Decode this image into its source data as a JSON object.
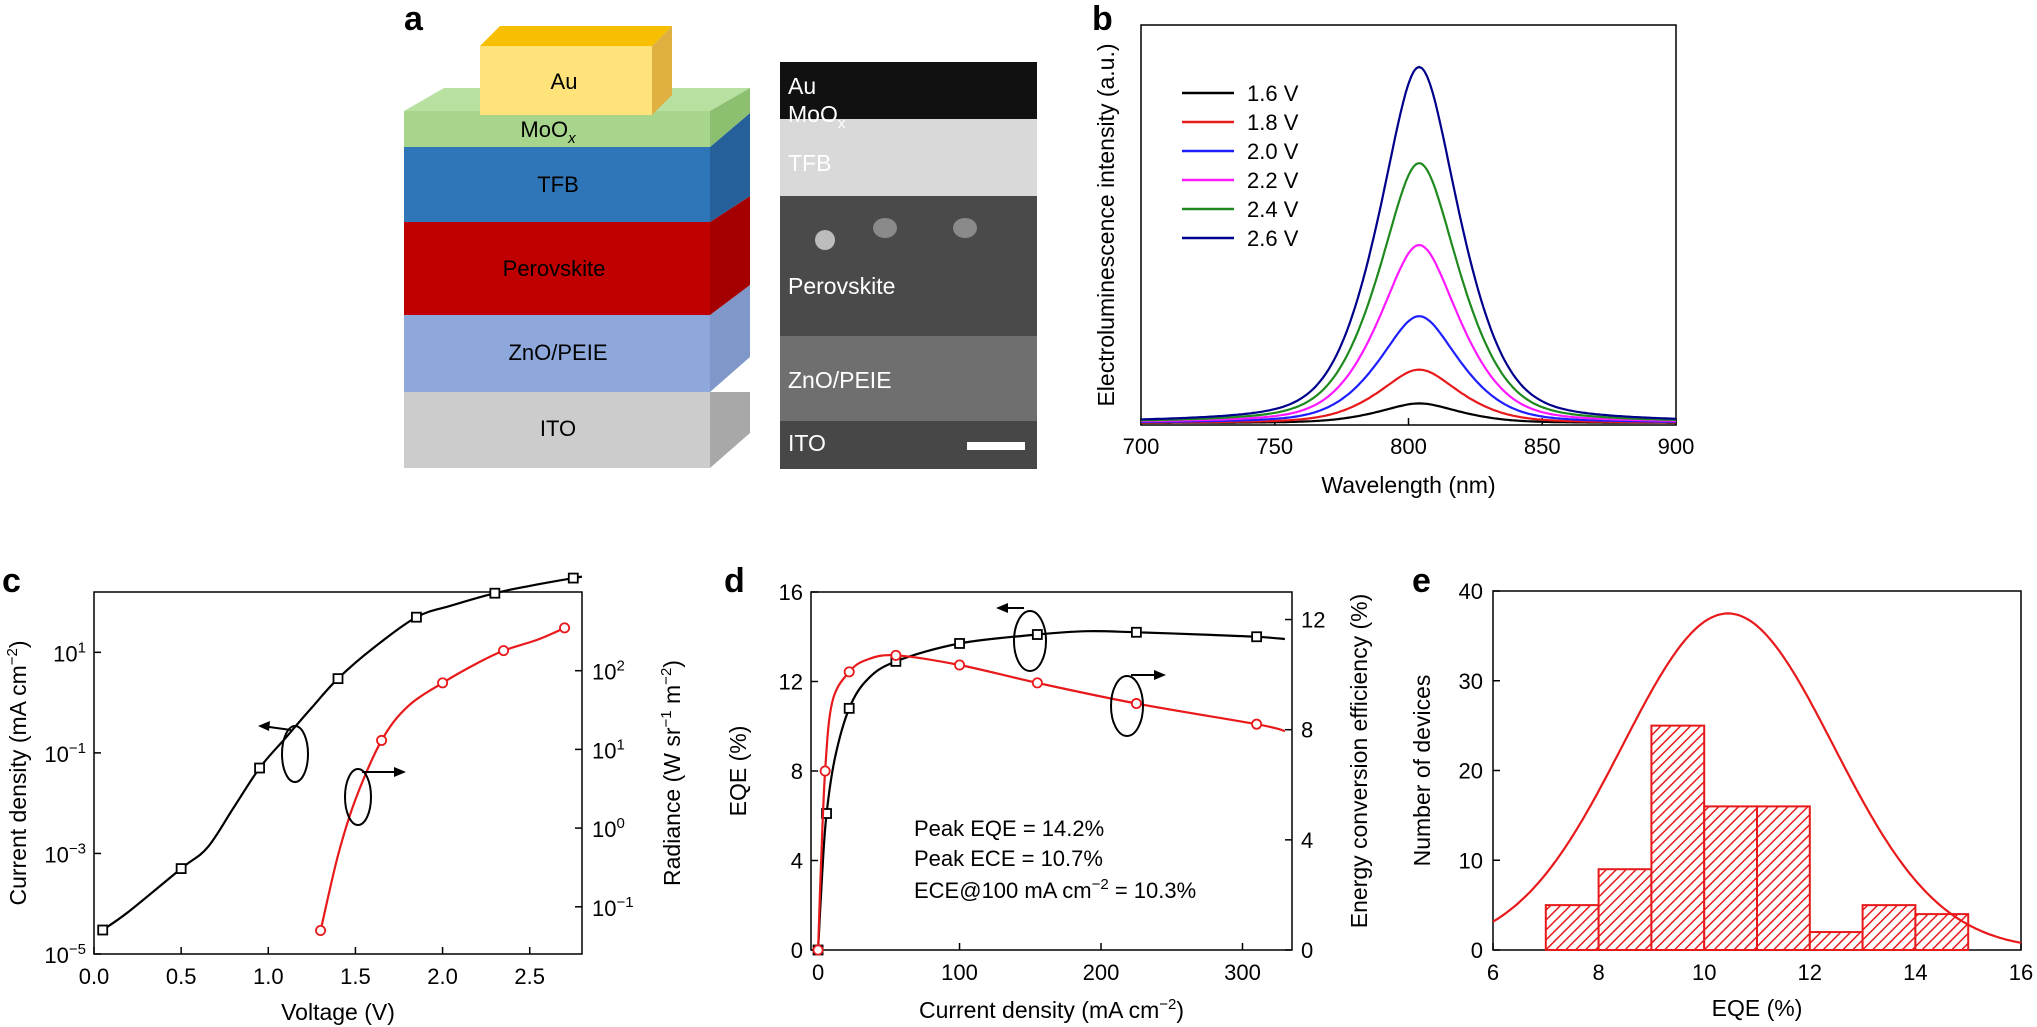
{
  "panels": {
    "a": "a",
    "b": "b",
    "c": "c",
    "d": "d",
    "e": "e"
  },
  "panel_a": {
    "stack_layers": [
      "Au",
      "MoO",
      "TFB",
      "Perovskite",
      "ZnO/PEIE",
      "ITO"
    ],
    "moo_subscript": "x",
    "tem_labels": [
      "Au",
      "MoO",
      "TFB",
      "Perovskite",
      "ZnO/PEIE",
      "ITO"
    ],
    "tem_subscript": "x",
    "colors": {
      "Au": "#FFE27A",
      "AuTop": "#F7BF00",
      "MoO": "#A7D58C",
      "TFB": "#2F76B8",
      "Perovskite": "#C00000",
      "ZnO": "#8FA8DC",
      "ITO": "#CCCCCC"
    }
  },
  "chart_data": [
    {
      "id": "b",
      "type": "line",
      "title": "",
      "xlabel": "Wavelength (nm)",
      "ylabel": "Electroluminescence intensity (a.u.)",
      "xlim": [
        700,
        900
      ],
      "ylim": [
        0,
        1.0
      ],
      "xticks": [
        700,
        750,
        800,
        850,
        900
      ],
      "x_tick_labels": [
        "700",
        "750",
        "800",
        "850",
        "900"
      ],
      "legend_position": "top-left",
      "peak_wavelength": 804,
      "series": [
        {
          "name": "1.6 V",
          "color": "#000000",
          "peak": 0.055
        },
        {
          "name": "1.8 V",
          "color": "#E8191B",
          "peak": 0.15
        },
        {
          "name": "2.0 V",
          "color": "#1E1EFF",
          "peak": 0.3
        },
        {
          "name": "2.2 V",
          "color": "#FF19FF",
          "peak": 0.5
        },
        {
          "name": "2.4 V",
          "color": "#1E8A1E",
          "peak": 0.73
        },
        {
          "name": "2.6 V",
          "color": "#00008B",
          "peak": 1.0
        }
      ]
    },
    {
      "id": "c",
      "type": "line",
      "xlabel": "Voltage (V)",
      "ylabel_left": "Current density (mA cm",
      "ylabel_left_sup": "−2",
      "ylabel_left_end": ")",
      "ylabel_right": "Radiance (W sr",
      "ylabel_right_sup1": "−1",
      "ylabel_right_mid": " m",
      "ylabel_right_sup2": "−2",
      "ylabel_right_end": ")",
      "xlim": [
        0,
        2.8
      ],
      "xticks": [
        0.0,
        0.5,
        1.0,
        1.5,
        2.0,
        2.5
      ],
      "x_tick_labels": [
        "0.0",
        "0.5",
        "1.0",
        "1.5",
        "2.0",
        "2.5"
      ],
      "left_ylim_log10": [
        -5,
        2.2
      ],
      "left_ticks": [
        {
          "base": "10",
          "exp": "1",
          "log": 1
        },
        {
          "base": "10",
          "exp": "−1",
          "log": -1
        },
        {
          "base": "10",
          "exp": "−3",
          "log": -3
        },
        {
          "base": "10",
          "exp": "−5",
          "log": -5
        }
      ],
      "right_ylim_log10": [
        -1.6,
        3.0
      ],
      "right_ticks": [
        {
          "base": "10",
          "exp": "2",
          "log": 2
        },
        {
          "base": "10",
          "exp": "1",
          "log": 1
        },
        {
          "base": "10",
          "exp": "0",
          "log": 0
        },
        {
          "base": "10",
          "exp": "−1",
          "log": -1
        }
      ],
      "series": [
        {
          "name": "Current density",
          "axis": "left",
          "color": "#000000",
          "marker": "square",
          "x": [
            0.05,
            0.5,
            0.95,
            1.4,
            1.85,
            2.3,
            2.75
          ],
          "y": [
            3e-05,
            0.0005,
            0.05,
            3,
            50,
            150,
            300
          ]
        },
        {
          "name": "Radiance",
          "axis": "right",
          "color": "#E8191B",
          "marker": "circle",
          "x": [
            1.3,
            1.65,
            2.0,
            2.35,
            2.7
          ],
          "y": [
            0.05,
            13,
            70,
            180,
            350
          ]
        }
      ]
    },
    {
      "id": "d",
      "type": "line",
      "xlabel": "Current density (mA cm",
      "xlabel_sup": "−2",
      "xlabel_end": ")",
      "ylabel_left": "EQE (%)",
      "ylabel_right": "Energy conversion efficiency (%)",
      "xlim": [
        -5,
        335
      ],
      "xticks": [
        0,
        100,
        200,
        300
      ],
      "x_tick_labels": [
        "0",
        "100",
        "200",
        "300"
      ],
      "left_ylim": [
        0,
        16
      ],
      "left_ticks": [
        0,
        4,
        8,
        12,
        16
      ],
      "left_tick_labels": [
        "0",
        "4",
        "8",
        "12",
        "16"
      ],
      "right_ylim": [
        0,
        13
      ],
      "right_ticks": [
        0,
        4,
        8,
        12
      ],
      "right_tick_labels": [
        "0",
        "4",
        "8",
        "12"
      ],
      "annotations": [
        "Peak EQE = 14.2%",
        "Peak ECE = 10.7%",
        "ECE@100 mA cm",
        "−2",
        " = 10.3%"
      ],
      "series": [
        {
          "name": "EQE",
          "axis": "left",
          "color": "#000000",
          "marker": "square",
          "x": [
            0,
            6,
            22,
            55,
            100,
            155,
            225,
            310
          ],
          "y": [
            0,
            6.1,
            10.8,
            12.9,
            13.7,
            14.1,
            14.2,
            14.0
          ]
        },
        {
          "name": "ECE",
          "axis": "right",
          "color": "#E8191B",
          "marker": "circle",
          "x": [
            0,
            5,
            22,
            55,
            100,
            155,
            225,
            310
          ],
          "y": [
            0,
            6.5,
            10.1,
            10.7,
            10.35,
            9.7,
            8.95,
            8.2
          ]
        }
      ]
    },
    {
      "id": "e",
      "type": "bar",
      "xlabel": "EQE (%)",
      "ylabel": "Number of devices",
      "xlim": [
        6,
        16
      ],
      "ylim": [
        0,
        40
      ],
      "xticks": [
        6,
        8,
        10,
        12,
        14,
        16
      ],
      "x_tick_labels": [
        "6",
        "8",
        "10",
        "12",
        "14",
        "16"
      ],
      "yticks": [
        0,
        10,
        20,
        30,
        40
      ],
      "y_tick_labels": [
        "0",
        "10",
        "20",
        "30",
        "40"
      ],
      "bin_edges": [
        7,
        8,
        9,
        10,
        11,
        12,
        13,
        14,
        15
      ],
      "counts": [
        5,
        9,
        25,
        16,
        16,
        2,
        5,
        4
      ],
      "fit": {
        "type": "gaussian",
        "mean": 10.45,
        "sigma": 2.0,
        "peak": 37.5
      },
      "color": "#E8191B"
    }
  ]
}
